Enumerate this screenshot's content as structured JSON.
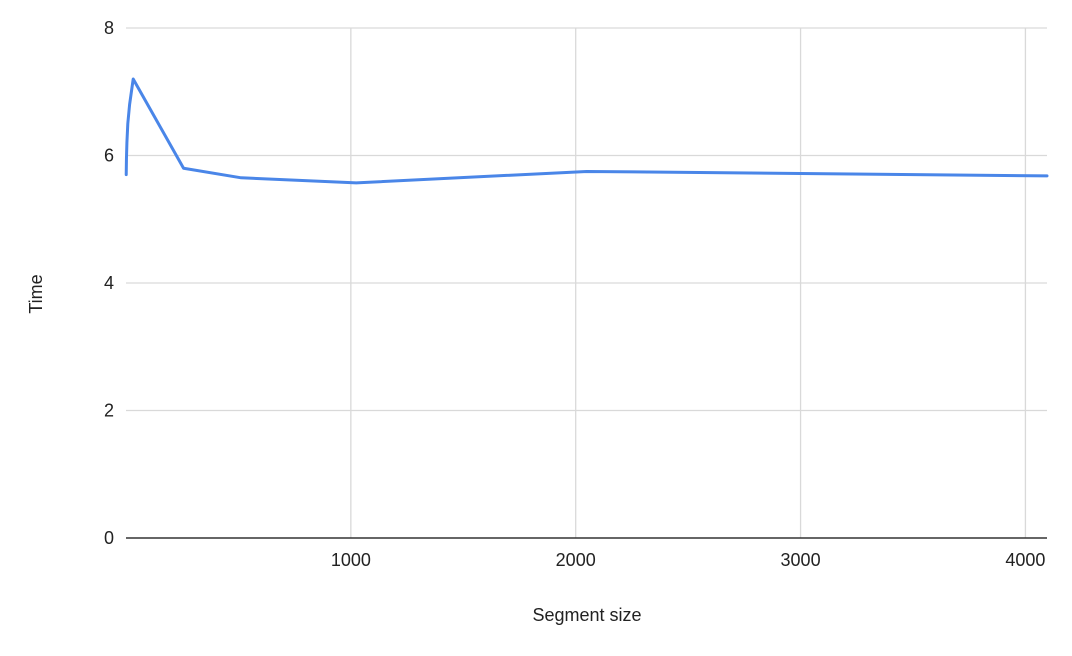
{
  "chart_data": {
    "type": "line",
    "title": "",
    "xlabel": "Segment size",
    "ylabel": "Time",
    "xlim": [
      0,
      4096
    ],
    "ylim": [
      0,
      8
    ],
    "x_ticks": [
      1000,
      2000,
      3000,
      4000
    ],
    "y_ticks": [
      0,
      2,
      4,
      6,
      8
    ],
    "grid": true,
    "legend": "none",
    "series": [
      {
        "x": [
          1,
          2,
          4,
          8,
          16,
          32,
          64,
          128,
          256,
          512,
          1024,
          2048,
          4096
        ],
        "y": [
          5.7,
          5.95,
          6.2,
          6.5,
          6.8,
          7.2,
          7.0,
          6.6,
          5.8,
          5.65,
          5.57,
          5.75,
          5.68
        ],
        "color": "#4a86e8"
      }
    ]
  }
}
